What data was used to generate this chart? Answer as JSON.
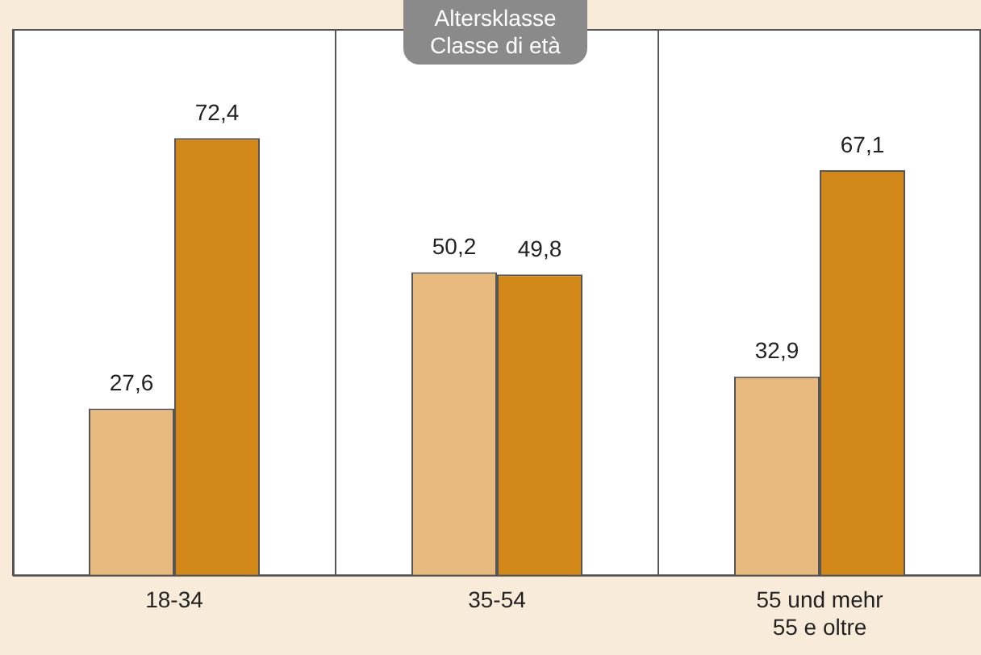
{
  "chart_data": {
    "type": "bar",
    "title": "Altersklasse\nClasse di età",
    "categories": [
      "18-34",
      "35-54",
      "55 und mehr\n55 e oltre"
    ],
    "series": [
      {
        "color": "#e8ba80",
        "values": [
          27.6,
          50.2,
          32.9
        ],
        "value_labels": [
          "27,6",
          "50,2",
          "32,9"
        ]
      },
      {
        "color": "#d28719",
        "values": [
          72.4,
          49.8,
          67.1
        ],
        "value_labels": [
          "72,4",
          "49,8",
          "67,1"
        ]
      }
    ],
    "grid": "x",
    "legend": false
  }
}
